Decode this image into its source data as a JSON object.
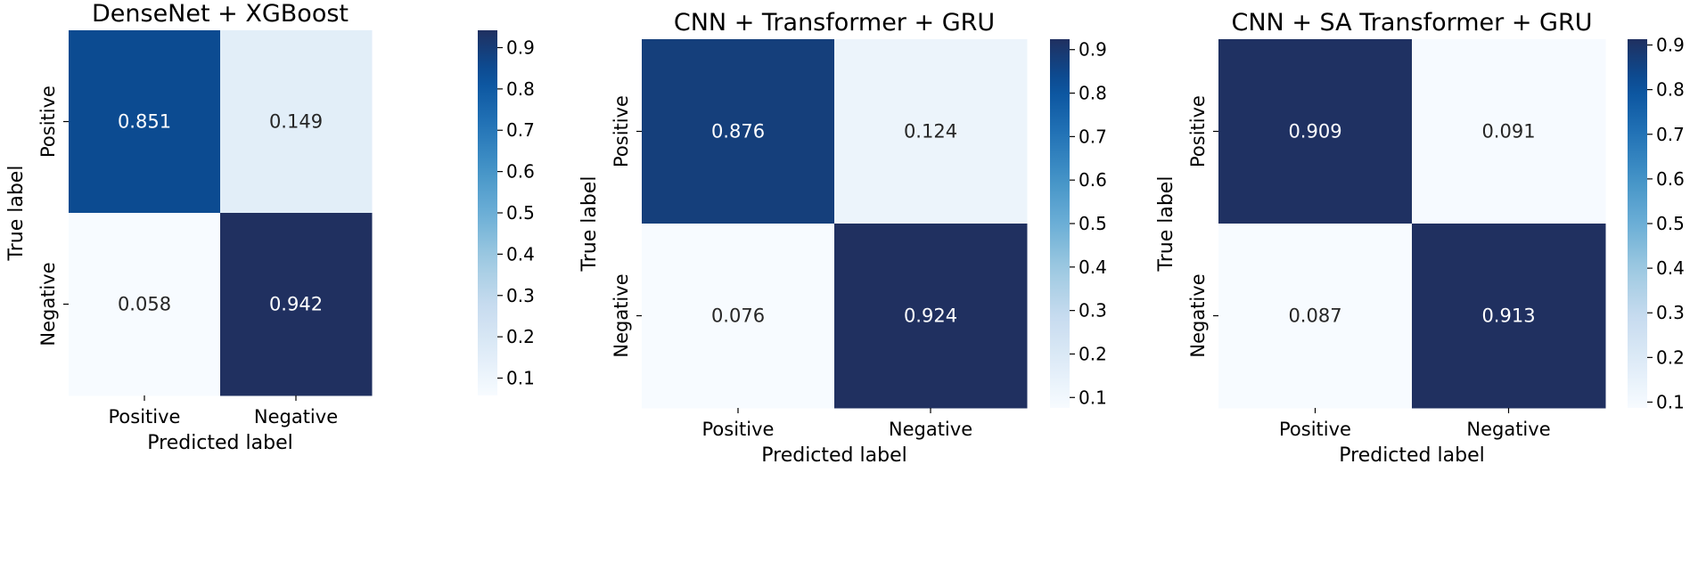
{
  "chart_data": [
    {
      "type": "heatmap",
      "title": "DenseNet + XGBoost",
      "xlabel": "Predicted label",
      "ylabel": "True label",
      "x_categories": [
        "Positive",
        "Negative"
      ],
      "y_categories": [
        "Positive",
        "Negative"
      ],
      "values": [
        [
          0.851,
          0.149
        ],
        [
          0.058,
          0.942
        ]
      ],
      "colormap": "Blues",
      "colorbar": {
        "ticks": [
          "0.1",
          "0.2",
          "0.3",
          "0.4",
          "0.5",
          "0.6",
          "0.7",
          "0.8",
          "0.9"
        ],
        "range": [
          0.058,
          0.942
        ]
      }
    },
    {
      "type": "heatmap",
      "title": "CNN + Transformer + GRU",
      "xlabel": "Predicted label",
      "ylabel": "True label",
      "x_categories": [
        "Positive",
        "Negative"
      ],
      "y_categories": [
        "Positive",
        "Negative"
      ],
      "values": [
        [
          0.876,
          0.124
        ],
        [
          0.076,
          0.924
        ]
      ],
      "colormap": "Blues",
      "colorbar": {
        "ticks": [
          "0.1",
          "0.2",
          "0.3",
          "0.4",
          "0.5",
          "0.6",
          "0.7",
          "0.8",
          "0.9"
        ],
        "range": [
          0.076,
          0.924
        ]
      }
    },
    {
      "type": "heatmap",
      "title": "CNN + SA Transformer + GRU",
      "xlabel": "Predicted label",
      "ylabel": "True label",
      "x_categories": [
        "Positive",
        "Negative"
      ],
      "y_categories": [
        "Positive",
        "Negative"
      ],
      "values": [
        [
          0.909,
          0.091
        ],
        [
          0.087,
          0.913
        ]
      ],
      "colormap": "Blues",
      "colorbar": {
        "ticks": [
          "0.1",
          "0.2",
          "0.3",
          "0.4",
          "0.5",
          "0.6",
          "0.7",
          "0.8",
          "0.9"
        ],
        "range": [
          0.087,
          0.913
        ]
      }
    }
  ]
}
